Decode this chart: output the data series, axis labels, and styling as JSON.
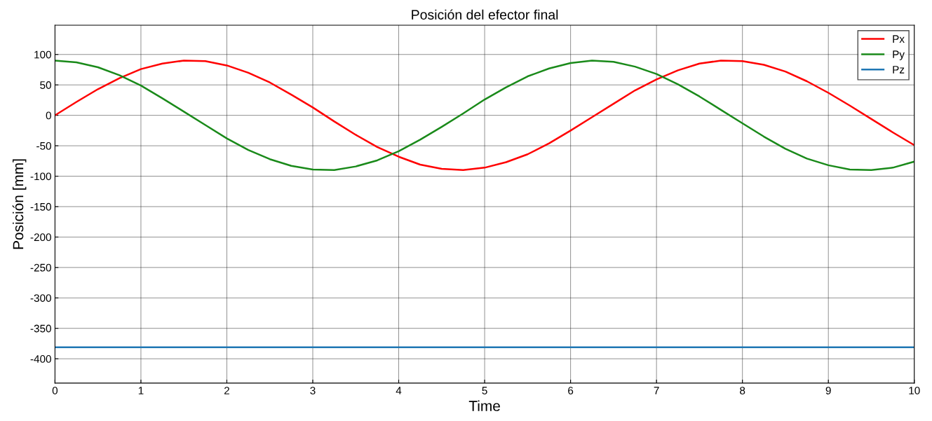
{
  "chart_data": {
    "type": "line",
    "title": "Posición del efector final",
    "xlabel": "Time",
    "ylabel": "Posición [mm]",
    "x": [
      0,
      0.25,
      0.5,
      0.75,
      1,
      1.25,
      1.5,
      1.75,
      2,
      2.25,
      2.5,
      2.75,
      3,
      3.25,
      3.5,
      3.75,
      4,
      4.25,
      4.5,
      4.75,
      5,
      5.25,
      5.5,
      5.75,
      6,
      6.25,
      6.5,
      6.75,
      7,
      7.25,
      7.5,
      7.75,
      8,
      8.25,
      8.5,
      8.75,
      9,
      9.25,
      9.5,
      9.75,
      10
    ],
    "series": [
      {
        "name": "Px",
        "color": "#ff0000",
        "values": [
          0,
          22,
          43,
          61,
          76,
          85,
          90,
          89,
          82,
          70,
          54,
          34,
          13,
          -10,
          -32,
          -52,
          -68,
          -81,
          -88,
          -90,
          -86,
          -77,
          -64,
          -46,
          -25,
          -3,
          19,
          41,
          59,
          74,
          85,
          90,
          89,
          83,
          72,
          56,
          37,
          16,
          -6,
          -28,
          -49
        ]
      },
      {
        "name": "Py",
        "color": "#1a8a1a",
        "values": [
          90,
          87,
          79,
          66,
          49,
          28,
          6,
          -16,
          -38,
          -57,
          -72,
          -83,
          -89,
          -90,
          -84,
          -74,
          -59,
          -40,
          -19,
          3,
          26,
          46,
          64,
          77,
          86,
          90,
          88,
          80,
          68,
          51,
          31,
          9,
          -13,
          -35,
          -55,
          -71,
          -82,
          -89,
          -90,
          -86,
          -76
        ]
      },
      {
        "name": "Pz",
        "color": "#1f77b4",
        "values": [
          -381,
          -381,
          -381,
          -381,
          -381,
          -381,
          -381,
          -381,
          -381,
          -381,
          -381,
          -381,
          -381,
          -381,
          -381,
          -381,
          -381,
          -381,
          -381,
          -381,
          -381,
          -381,
          -381,
          -381,
          -381,
          -381,
          -381,
          -381,
          -381,
          -381,
          -381,
          -381,
          -381,
          -381,
          -381,
          -381,
          -381,
          -381,
          -381,
          -381,
          -381
        ]
      }
    ],
    "xlim": [
      0,
      10
    ],
    "xticks": [
      0,
      1,
      2,
      3,
      4,
      5,
      6,
      7,
      8,
      9,
      10
    ],
    "ylim": [
      -440,
      148
    ],
    "yticks": [
      -400,
      -350,
      -300,
      -250,
      -200,
      -150,
      -100,
      -50,
      0,
      50,
      100
    ],
    "grid": true,
    "legend": "top right",
    "line_style": "solid",
    "marker": "none"
  }
}
